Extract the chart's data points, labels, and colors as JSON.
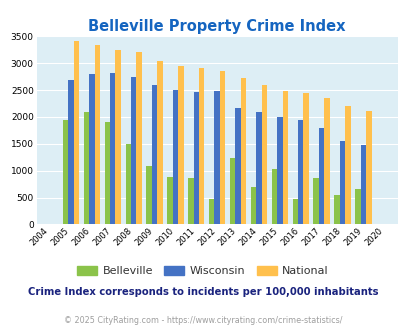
{
  "title": "Belleville Property Crime Index",
  "title_color": "#1565c0",
  "years": [
    2004,
    2005,
    2006,
    2007,
    2008,
    2009,
    2010,
    2011,
    2012,
    2013,
    2014,
    2015,
    2016,
    2017,
    2018,
    2019,
    2020
  ],
  "belleville": [
    0,
    1950,
    2100,
    1900,
    1500,
    1080,
    880,
    870,
    470,
    1240,
    700,
    1040,
    470,
    860,
    550,
    650,
    0
  ],
  "wisconsin": [
    0,
    2680,
    2800,
    2820,
    2750,
    2600,
    2500,
    2460,
    2480,
    2170,
    2090,
    1990,
    1940,
    1790,
    1560,
    1470,
    0
  ],
  "national": [
    0,
    3420,
    3340,
    3250,
    3210,
    3040,
    2940,
    2910,
    2860,
    2720,
    2590,
    2490,
    2450,
    2360,
    2200,
    2110,
    0
  ],
  "belleville_color": "#8bc34a",
  "wisconsin_color": "#4472c4",
  "national_color": "#ffc04d",
  "plot_bg_color": "#ddeef5",
  "ylim": [
    0,
    3500
  ],
  "yticks": [
    0,
    500,
    1000,
    1500,
    2000,
    2500,
    3000,
    3500
  ],
  "subtitle": "Crime Index corresponds to incidents per 100,000 inhabitants",
  "subtitle_color": "#1a237e",
  "footer": "© 2025 CityRating.com - https://www.cityrating.com/crime-statistics/",
  "footer_color": "#9e9e9e",
  "legend_labels": [
    "Belleville",
    "Wisconsin",
    "National"
  ]
}
